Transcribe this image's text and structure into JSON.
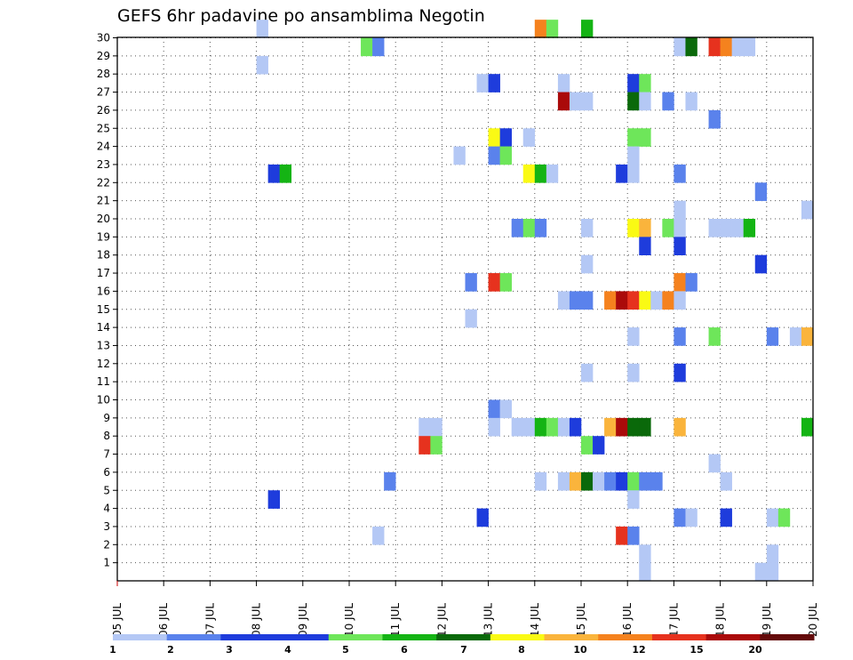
{
  "chart_data": {
    "type": "heatmap",
    "title": "GEFS 6hr padavine po ansamblima Negotin",
    "xlabel": "",
    "ylabel": "",
    "members": [
      "1",
      "2",
      "3",
      "4",
      "5",
      "6",
      "7",
      "8",
      "9",
      "10",
      "11",
      "12",
      "13",
      "14",
      "15",
      "16",
      "17",
      "18",
      "19",
      "20",
      "21",
      "22",
      "23",
      "24",
      "25",
      "26",
      "27",
      "28",
      "29",
      "30"
    ],
    "dates": [
      "05 JUL",
      "06 JUL",
      "07 JUL",
      "08 JUL",
      "09 JUL",
      "10 JUL",
      "11 JUL",
      "12 JUL",
      "13 JUL",
      "14 JUL",
      "15 JUL",
      "16 JUL",
      "17 JUL",
      "18 JUL",
      "19 JUL",
      "20 JUL"
    ],
    "steps_per_day": 4,
    "legend_thresholds": [
      "1",
      "2",
      "3",
      "4",
      "5",
      "6",
      "7",
      "8",
      "10",
      "12",
      "15",
      "20"
    ],
    "legend_colors": [
      "#b4c8f5",
      "#5a82ec",
      "#1e3cdc",
      "#1e3cdc",
      "#6ee65a",
      "#14b414",
      "#0a690a",
      "#fafa14",
      "#fab43c",
      "#f5821e",
      "#e6321e",
      "#aa0a0a",
      "#640a0a"
    ],
    "cells": [
      {
        "m": 30,
        "t": 12,
        "c": 0
      },
      {
        "m": 30,
        "t": 36,
        "c": 9
      },
      {
        "m": 30,
        "t": 37,
        "c": 4
      },
      {
        "m": 30,
        "t": 40,
        "c": 5
      },
      {
        "m": 29,
        "t": 21,
        "c": 4
      },
      {
        "m": 29,
        "t": 22,
        "c": 1
      },
      {
        "m": 29,
        "t": 48,
        "c": 0
      },
      {
        "m": 29,
        "t": 49,
        "c": 6
      },
      {
        "m": 29,
        "t": 51,
        "c": 10
      },
      {
        "m": 29,
        "t": 52,
        "c": 9
      },
      {
        "m": 29,
        "t": 53,
        "c": 0
      },
      {
        "m": 29,
        "t": 54,
        "c": 0
      },
      {
        "m": 28,
        "t": 12,
        "c": 0
      },
      {
        "m": 27,
        "t": 31,
        "c": 0
      },
      {
        "m": 27,
        "t": 32,
        "c": 2
      },
      {
        "m": 27,
        "t": 38,
        "c": 0
      },
      {
        "m": 27,
        "t": 44,
        "c": 2
      },
      {
        "m": 27,
        "t": 45,
        "c": 4
      },
      {
        "m": 26,
        "t": 38,
        "c": 11
      },
      {
        "m": 26,
        "t": 39,
        "c": 0
      },
      {
        "m": 26,
        "t": 40,
        "c": 0
      },
      {
        "m": 26,
        "t": 44,
        "c": 6
      },
      {
        "m": 26,
        "t": 45,
        "c": 0
      },
      {
        "m": 26,
        "t": 47,
        "c": 1
      },
      {
        "m": 26,
        "t": 49,
        "c": 0
      },
      {
        "m": 25,
        "t": 51,
        "c": 1
      },
      {
        "m": 24,
        "t": 32,
        "c": 7
      },
      {
        "m": 24,
        "t": 33,
        "c": 2
      },
      {
        "m": 24,
        "t": 35,
        "c": 0
      },
      {
        "m": 24,
        "t": 44,
        "c": 4
      },
      {
        "m": 24,
        "t": 45,
        "c": 4
      },
      {
        "m": 23,
        "t": 29,
        "c": 0
      },
      {
        "m": 23,
        "t": 32,
        "c": 1
      },
      {
        "m": 23,
        "t": 33,
        "c": 4
      },
      {
        "m": 23,
        "t": 44,
        "c": 0
      },
      {
        "m": 22,
        "t": 13,
        "c": 2
      },
      {
        "m": 22,
        "t": 14,
        "c": 5
      },
      {
        "m": 22,
        "t": 35,
        "c": 7
      },
      {
        "m": 22,
        "t": 36,
        "c": 5
      },
      {
        "m": 22,
        "t": 37,
        "c": 0
      },
      {
        "m": 22,
        "t": 43,
        "c": 2
      },
      {
        "m": 22,
        "t": 44,
        "c": 0
      },
      {
        "m": 22,
        "t": 48,
        "c": 1
      },
      {
        "m": 21,
        "t": 55,
        "c": 1
      },
      {
        "m": 20,
        "t": 48,
        "c": 0
      },
      {
        "m": 20,
        "t": 59,
        "c": 0
      },
      {
        "m": 19,
        "t": 34,
        "c": 1
      },
      {
        "m": 19,
        "t": 35,
        "c": 4
      },
      {
        "m": 19,
        "t": 36,
        "c": 1
      },
      {
        "m": 19,
        "t": 40,
        "c": 0
      },
      {
        "m": 19,
        "t": 44,
        "c": 7
      },
      {
        "m": 19,
        "t": 45,
        "c": 8
      },
      {
        "m": 19,
        "t": 47,
        "c": 4
      },
      {
        "m": 19,
        "t": 48,
        "c": 0
      },
      {
        "m": 19,
        "t": 51,
        "c": 0
      },
      {
        "m": 19,
        "t": 52,
        "c": 0
      },
      {
        "m": 19,
        "t": 53,
        "c": 0
      },
      {
        "m": 19,
        "t": 54,
        "c": 5
      },
      {
        "m": 18,
        "t": 45,
        "c": 2
      },
      {
        "m": 18,
        "t": 48,
        "c": 2
      },
      {
        "m": 17,
        "t": 40,
        "c": 0
      },
      {
        "m": 17,
        "t": 55,
        "c": 2
      },
      {
        "m": 16,
        "t": 30,
        "c": 1
      },
      {
        "m": 16,
        "t": 32,
        "c": 10
      },
      {
        "m": 16,
        "t": 33,
        "c": 4
      },
      {
        "m": 16,
        "t": 48,
        "c": 9
      },
      {
        "m": 16,
        "t": 49,
        "c": 1
      },
      {
        "m": 15,
        "t": 38,
        "c": 0
      },
      {
        "m": 15,
        "t": 39,
        "c": 1
      },
      {
        "m": 15,
        "t": 40,
        "c": 1
      },
      {
        "m": 15,
        "t": 42,
        "c": 9
      },
      {
        "m": 15,
        "t": 43,
        "c": 11
      },
      {
        "m": 15,
        "t": 44,
        "c": 10
      },
      {
        "m": 15,
        "t": 45,
        "c": 7
      },
      {
        "m": 15,
        "t": 46,
        "c": 0
      },
      {
        "m": 15,
        "t": 47,
        "c": 9
      },
      {
        "m": 15,
        "t": 48,
        "c": 0
      },
      {
        "m": 14,
        "t": 30,
        "c": 0
      },
      {
        "m": 13,
        "t": 44,
        "c": 0
      },
      {
        "m": 13,
        "t": 48,
        "c": 1
      },
      {
        "m": 13,
        "t": 51,
        "c": 4
      },
      {
        "m": 13,
        "t": 56,
        "c": 1
      },
      {
        "m": 13,
        "t": 58,
        "c": 0
      },
      {
        "m": 13,
        "t": 59,
        "c": 8
      },
      {
        "m": 11,
        "t": 40,
        "c": 0
      },
      {
        "m": 11,
        "t": 44,
        "c": 0
      },
      {
        "m": 11,
        "t": 48,
        "c": 2
      },
      {
        "m": 9,
        "t": 32,
        "c": 1
      },
      {
        "m": 9,
        "t": 33,
        "c": 0
      },
      {
        "m": 8,
        "t": 26,
        "c": 0
      },
      {
        "m": 8,
        "t": 27,
        "c": 0
      },
      {
        "m": 8,
        "t": 32,
        "c": 0
      },
      {
        "m": 8,
        "t": 34,
        "c": 0
      },
      {
        "m": 8,
        "t": 35,
        "c": 0
      },
      {
        "m": 8,
        "t": 36,
        "c": 5
      },
      {
        "m": 8,
        "t": 37,
        "c": 4
      },
      {
        "m": 8,
        "t": 38,
        "c": 0
      },
      {
        "m": 8,
        "t": 39,
        "c": 2
      },
      {
        "m": 8,
        "t": 42,
        "c": 8
      },
      {
        "m": 8,
        "t": 43,
        "c": 11
      },
      {
        "m": 8,
        "t": 44,
        "c": 6
      },
      {
        "m": 8,
        "t": 45,
        "c": 6
      },
      {
        "m": 8,
        "t": 48,
        "c": 8
      },
      {
        "m": 8,
        "t": 59,
        "c": 5
      },
      {
        "m": 7,
        "t": 26,
        "c": 10
      },
      {
        "m": 7,
        "t": 27,
        "c": 4
      },
      {
        "m": 7,
        "t": 40,
        "c": 4
      },
      {
        "m": 7,
        "t": 41,
        "c": 2
      },
      {
        "m": 6,
        "t": 51,
        "c": 0
      },
      {
        "m": 5,
        "t": 23,
        "c": 1
      },
      {
        "m": 5,
        "t": 36,
        "c": 0
      },
      {
        "m": 5,
        "t": 38,
        "c": 0
      },
      {
        "m": 5,
        "t": 39,
        "c": 8
      },
      {
        "m": 5,
        "t": 40,
        "c": 6
      },
      {
        "m": 5,
        "t": 41,
        "c": 0
      },
      {
        "m": 5,
        "t": 42,
        "c": 1
      },
      {
        "m": 5,
        "t": 43,
        "c": 2
      },
      {
        "m": 5,
        "t": 44,
        "c": 4
      },
      {
        "m": 5,
        "t": 45,
        "c": 1
      },
      {
        "m": 5,
        "t": 46,
        "c": 1
      },
      {
        "m": 5,
        "t": 52,
        "c": 0
      },
      {
        "m": 4,
        "t": 13,
        "c": 2
      },
      {
        "m": 4,
        "t": 44,
        "c": 0
      },
      {
        "m": 3,
        "t": 31,
        "c": 2
      },
      {
        "m": 3,
        "t": 48,
        "c": 1
      },
      {
        "m": 3,
        "t": 49,
        "c": 0
      },
      {
        "m": 3,
        "t": 52,
        "c": 2
      },
      {
        "m": 3,
        "t": 56,
        "c": 0
      },
      {
        "m": 3,
        "t": 57,
        "c": 4
      },
      {
        "m": 2,
        "t": 22,
        "c": 0
      },
      {
        "m": 2,
        "t": 43,
        "c": 10
      },
      {
        "m": 2,
        "t": 44,
        "c": 1
      },
      {
        "m": 1,
        "t": 45,
        "c": 0
      },
      {
        "m": 1,
        "t": 56,
        "c": 0
      },
      {
        "m": 0,
        "t": 45,
        "c": 0
      },
      {
        "m": 0,
        "t": 55,
        "c": 0
      },
      {
        "m": 0,
        "t": 56,
        "c": 0
      }
    ]
  }
}
